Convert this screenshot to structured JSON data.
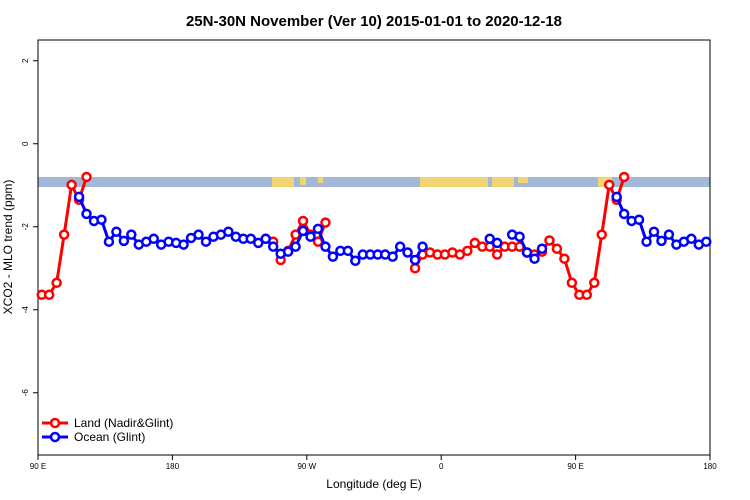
{
  "chart_data": {
    "type": "line",
    "title": "25N-30N November (Ver 10)   2015-01-01 to 2020-12-18",
    "x_label": "Longitude (deg E)",
    "y_label": "XCO2 - MLO trend (ppm)",
    "xlim": [
      90,
      540
    ],
    "ylim": [
      -7.5,
      2.5
    ],
    "xticks": [
      {
        "value": 90,
        "label": "90 E"
      },
      {
        "value": 180,
        "label": "180"
      },
      {
        "value": 270,
        "label": "90 W"
      },
      {
        "value": 360,
        "label": "0"
      },
      {
        "value": 450,
        "label": "90 E"
      },
      {
        "value": 540,
        "label": "180"
      }
    ],
    "yticks": [
      -6,
      -4,
      -2,
      0,
      2
    ],
    "legend": "bottom-left",
    "x": [
      92.5,
      97.5,
      102.5,
      107.5,
      112.5,
      117.5,
      122.5,
      127.5,
      132.5,
      137.5,
      142.5,
      147.5,
      152.5,
      157.5,
      162.5,
      167.5,
      172.5,
      177.5,
      182.5,
      187.5,
      192.5,
      197.5,
      202.5,
      207.5,
      212.5,
      217.5,
      222.5,
      227.5,
      232.5,
      237.5,
      242.5,
      247.5,
      252.5,
      257.5,
      262.5,
      267.5,
      272.5,
      277.5,
      282.5,
      287.5,
      292.5,
      297.5,
      302.5,
      307.5,
      312.5,
      317.5,
      322.5,
      327.5,
      332.5,
      337.5,
      342.5,
      347.5,
      352.5,
      357.5,
      362.5,
      367.5,
      372.5,
      377.5,
      382.5,
      387.5,
      392.5,
      397.5,
      402.5,
      407.5,
      412.5,
      417.5,
      422.5,
      427.5,
      432.5,
      437.5,
      442.5,
      447.5,
      452.5,
      457.5,
      462.5,
      467.5,
      472.5,
      477.5,
      482.5,
      487.5,
      492.5,
      497.5,
      502.5,
      507.5,
      512.5,
      517.5,
      522.5,
      527.5,
      532.5,
      537.5
    ],
    "series": [
      {
        "name": "Land (Nadir&Glint)",
        "color": "#ff0000",
        "values": [
          -3.64,
          -3.64,
          -3.35,
          -2.19,
          -0.99,
          -1.35,
          -0.8,
          null,
          null,
          null,
          null,
          null,
          null,
          null,
          null,
          null,
          null,
          null,
          null,
          null,
          null,
          null,
          null,
          null,
          null,
          null,
          null,
          null,
          null,
          null,
          -2.29,
          -2.36,
          -2.8,
          -2.58,
          -2.19,
          -1.86,
          -2.19,
          -2.36,
          -1.9,
          null,
          null,
          null,
          null,
          null,
          null,
          null,
          null,
          null,
          null,
          null,
          -3.0,
          -2.67,
          -2.62,
          -2.67,
          -2.67,
          -2.62,
          -2.67,
          -2.58,
          -2.39,
          -2.48,
          -2.48,
          -2.67,
          -2.48,
          -2.48,
          -2.48,
          -2.62,
          -2.67,
          -2.6,
          -2.33,
          -2.53,
          -2.77,
          -3.35,
          -3.64,
          -3.64,
          -3.35,
          -2.19,
          -0.99,
          -1.35,
          -0.8,
          null,
          null,
          null,
          null,
          null,
          null,
          null,
          null,
          null,
          null,
          null
        ]
      },
      {
        "name": "Ocean (Glint)",
        "color": "#0000ff",
        "values": [
          null,
          null,
          null,
          null,
          null,
          -1.28,
          -1.69,
          -1.86,
          -1.83,
          -2.36,
          -2.12,
          -2.34,
          -2.19,
          -2.43,
          -2.36,
          -2.29,
          -2.43,
          -2.36,
          -2.39,
          -2.43,
          -2.27,
          -2.19,
          -2.36,
          -2.24,
          -2.19,
          -2.12,
          -2.24,
          -2.29,
          -2.29,
          -2.39,
          -2.29,
          -2.48,
          -2.65,
          -2.6,
          -2.48,
          -2.1,
          -2.24,
          -2.05,
          -2.48,
          -2.72,
          -2.58,
          -2.58,
          -2.82,
          -2.67,
          -2.67,
          -2.67,
          -2.67,
          -2.72,
          -2.48,
          -2.62,
          -2.8,
          -2.48,
          null,
          null,
          null,
          null,
          null,
          null,
          null,
          null,
          -2.29,
          -2.39,
          null,
          -2.19,
          -2.24,
          -2.62,
          -2.77,
          -2.53,
          null,
          null,
          null,
          null,
          null,
          null,
          null,
          null,
          null,
          -1.28,
          -1.69,
          -1.86,
          -1.83,
          -2.36,
          -2.12,
          -2.34,
          -2.19,
          -2.43,
          -2.36,
          -2.29,
          -2.43,
          -2.36
        ]
      }
    ]
  }
}
